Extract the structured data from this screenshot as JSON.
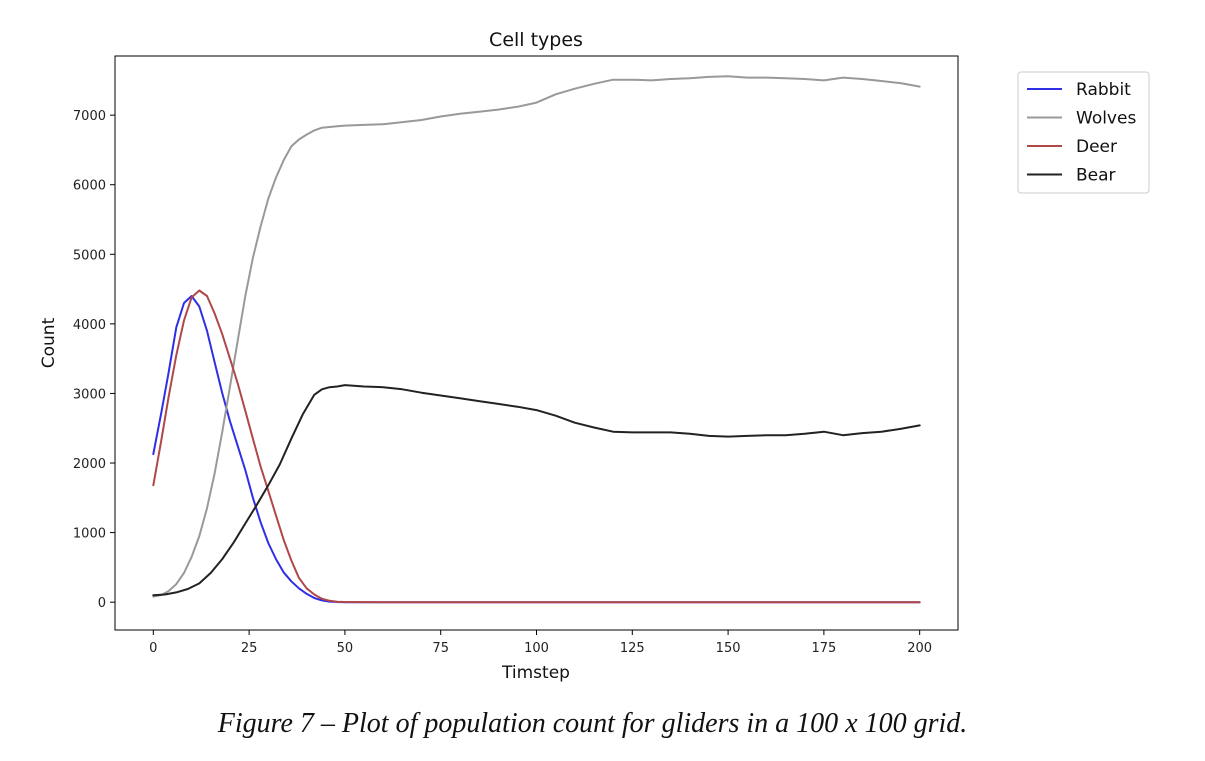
{
  "caption": "Figure 7 – Plot of population count for gliders in a 100 x 100 grid.",
  "chart_data": {
    "type": "line",
    "title": "Cell types",
    "xlabel": "Timstep",
    "ylabel": "Count",
    "xlim": [
      -10,
      210
    ],
    "ylim": [
      -400,
      7850
    ],
    "xticks": [
      0,
      25,
      50,
      75,
      100,
      125,
      150,
      175,
      200
    ],
    "yticks": [
      0,
      1000,
      2000,
      3000,
      4000,
      5000,
      6000,
      7000
    ],
    "grid": false,
    "legend_position": "outside-top-right",
    "series": [
      {
        "name": "Rabbit",
        "color": "#2f2fe6",
        "x": [
          0,
          2,
          4,
          6,
          8,
          10,
          12,
          14,
          16,
          18,
          20,
          22,
          24,
          26,
          28,
          30,
          32,
          34,
          36,
          38,
          40,
          42,
          44,
          46,
          48,
          50,
          60,
          100,
          150,
          200
        ],
        "y": [
          2130,
          2700,
          3300,
          3950,
          4300,
          4400,
          4250,
          3900,
          3450,
          3000,
          2600,
          2250,
          1900,
          1500,
          1150,
          850,
          620,
          430,
          300,
          200,
          120,
          60,
          25,
          8,
          2,
          0,
          0,
          0,
          0,
          0
        ]
      },
      {
        "name": "Wolves",
        "color": "#999999",
        "x": [
          0,
          2,
          4,
          6,
          8,
          10,
          12,
          14,
          16,
          18,
          20,
          22,
          24,
          26,
          28,
          30,
          32,
          34,
          36,
          38,
          40,
          42,
          44,
          46,
          48,
          50,
          55,
          60,
          65,
          70,
          75,
          80,
          85,
          90,
          95,
          100,
          105,
          110,
          115,
          120,
          125,
          130,
          135,
          140,
          145,
          150,
          155,
          160,
          165,
          170,
          175,
          180,
          185,
          190,
          195,
          200
        ],
        "y": [
          80,
          100,
          160,
          260,
          420,
          650,
          950,
          1350,
          1850,
          2450,
          3100,
          3750,
          4400,
          4950,
          5400,
          5800,
          6100,
          6350,
          6550,
          6650,
          6720,
          6780,
          6820,
          6830,
          6840,
          6850,
          6860,
          6870,
          6900,
          6930,
          6980,
          7020,
          7050,
          7080,
          7120,
          7180,
          7300,
          7380,
          7450,
          7510,
          7510,
          7500,
          7520,
          7530,
          7550,
          7560,
          7540,
          7540,
          7530,
          7520,
          7500,
          7540,
          7520,
          7490,
          7460,
          7410
        ]
      },
      {
        "name": "Deer",
        "color": "#b04848",
        "x": [
          0,
          2,
          4,
          6,
          8,
          10,
          12,
          14,
          16,
          18,
          20,
          22,
          24,
          26,
          28,
          30,
          32,
          34,
          36,
          38,
          40,
          42,
          44,
          46,
          48,
          50,
          60,
          100,
          150,
          200
        ],
        "y": [
          1680,
          2300,
          2950,
          3550,
          4050,
          4380,
          4480,
          4400,
          4150,
          3850,
          3500,
          3150,
          2750,
          2350,
          1950,
          1600,
          1250,
          900,
          600,
          350,
          200,
          110,
          50,
          20,
          5,
          2,
          0,
          0,
          0,
          0
        ]
      },
      {
        "name": "Bear",
        "color": "#222222",
        "x": [
          0,
          3,
          6,
          9,
          12,
          15,
          18,
          21,
          24,
          27,
          30,
          33,
          36,
          39,
          42,
          44,
          46,
          48,
          50,
          55,
          60,
          65,
          70,
          75,
          80,
          85,
          90,
          95,
          100,
          105,
          110,
          115,
          120,
          125,
          130,
          135,
          140,
          145,
          150,
          155,
          160,
          165,
          170,
          175,
          180,
          185,
          190,
          195,
          200
        ],
        "y": [
          100,
          110,
          140,
          190,
          270,
          420,
          620,
          860,
          1130,
          1400,
          1680,
          1980,
          2350,
          2700,
          2980,
          3060,
          3090,
          3100,
          3120,
          3100,
          3090,
          3060,
          3010,
          2970,
          2930,
          2890,
          2850,
          2810,
          2760,
          2680,
          2580,
          2510,
          2450,
          2440,
          2440,
          2440,
          2420,
          2390,
          2380,
          2390,
          2400,
          2400,
          2420,
          2450,
          2400,
          2430,
          2450,
          2490,
          2540
        ]
      }
    ]
  }
}
